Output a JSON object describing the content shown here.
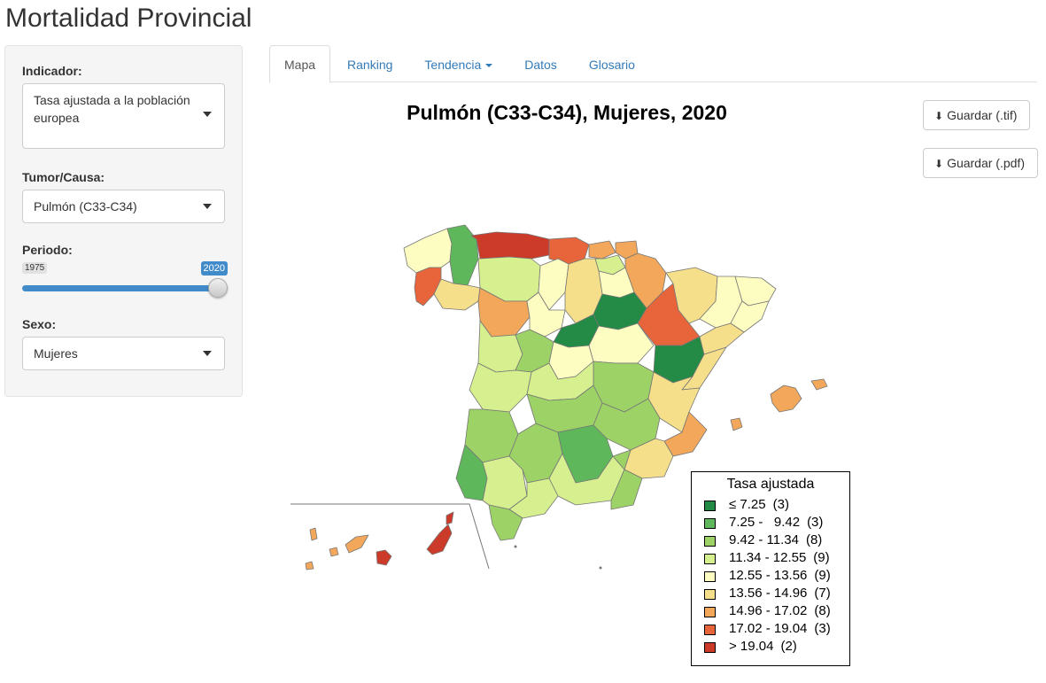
{
  "app": {
    "title": "Mortalidad Provincial"
  },
  "sidebar": {
    "indicator": {
      "label": "Indicador:",
      "value": "Tasa ajustada a la población europea"
    },
    "tumor": {
      "label": "Tumor/Causa:",
      "value": "Pulmón (C33-C34)"
    },
    "period": {
      "label": "Periodo:",
      "min": "1975",
      "max": "2020",
      "value": "2020"
    },
    "sex": {
      "label": "Sexo:",
      "value": "Mujeres"
    }
  },
  "tabs": [
    {
      "label": "Mapa",
      "active": true
    },
    {
      "label": "Ranking"
    },
    {
      "label": "Tendencia",
      "dropdown": true
    },
    {
      "label": "Datos"
    },
    {
      "label": "Glosario"
    }
  ],
  "map": {
    "title": "Pulmón (C33-C34), Mujeres, 2020",
    "download_tif": "Guardar (.tif)",
    "download_pdf": "Guardar (.pdf)",
    "download_icon": "download-icon"
  },
  "legend": {
    "title": "Tasa ajustada",
    "items": [
      {
        "label": "≤ 7.25",
        "count": "(3)",
        "color": "#238b45"
      },
      {
        "label": "7.25 -   9.42",
        "count": "(3)",
        "color": "#5fb75b"
      },
      {
        "label": "9.42 - 11.34",
        "count": "(8)",
        "color": "#9dd267"
      },
      {
        "label": "11.34 - 12.55",
        "count": "(9)",
        "color": "#d6ef8f"
      },
      {
        "label": "12.55 - 13.56",
        "count": "(9)",
        "color": "#fdfdc2"
      },
      {
        "label": "13.56 - 14.96",
        "count": "(7)",
        "color": "#f6df8a"
      },
      {
        "label": "14.96 - 17.02",
        "count": "(8)",
        "color": "#f2a75a"
      },
      {
        "label": "17.02 - 19.04",
        "count": "(3)",
        "color": "#e8643a"
      },
      {
        "label": "> 19.04",
        "count": "(2)",
        "color": "#cc3a2a"
      }
    ]
  },
  "colors": {
    "accent": "#428bca",
    "link": "#337ab7",
    "border": "#ddd"
  }
}
